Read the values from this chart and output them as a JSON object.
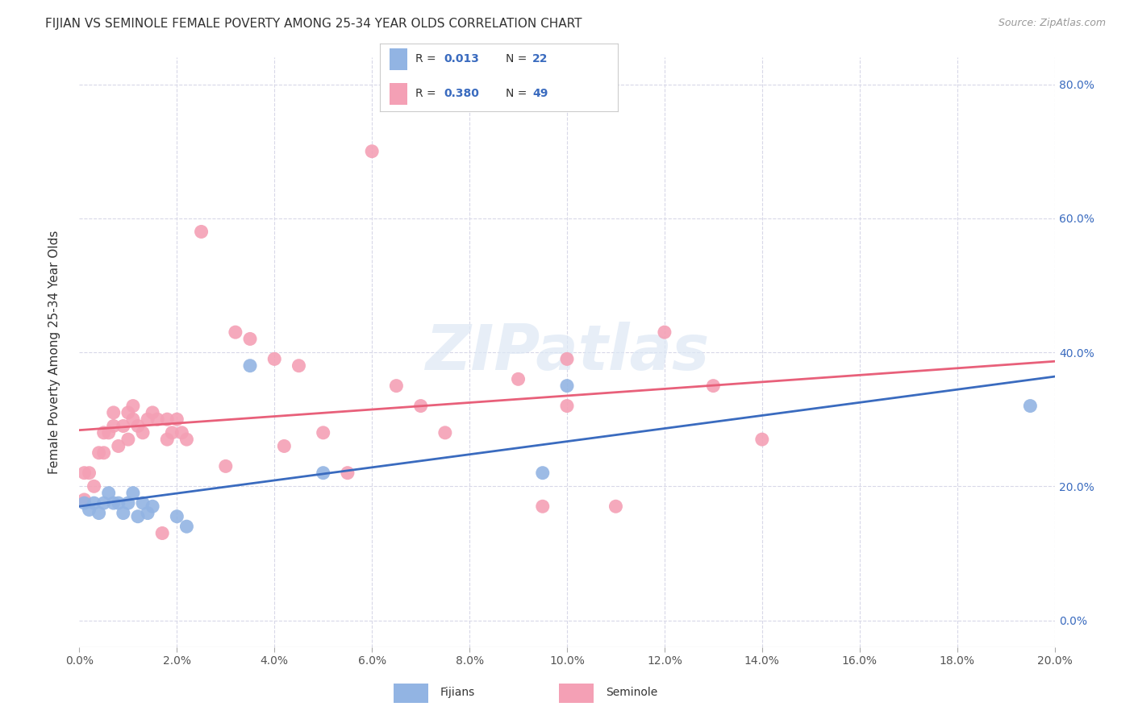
{
  "title": "FIJIAN VS SEMINOLE FEMALE POVERTY AMONG 25-34 YEAR OLDS CORRELATION CHART",
  "source": "Source: ZipAtlas.com",
  "ylabel": "Female Poverty Among 25-34 Year Olds",
  "xlim": [
    0.0,
    0.2
  ],
  "ylim": [
    -0.04,
    0.84
  ],
  "x_ticks": [
    0.0,
    0.02,
    0.04,
    0.06,
    0.08,
    0.1,
    0.12,
    0.14,
    0.16,
    0.18,
    0.2
  ],
  "y_ticks": [
    0.0,
    0.2,
    0.4,
    0.6,
    0.8
  ],
  "fijian_color": "#92b4e3",
  "seminole_color": "#f4a0b5",
  "fijian_line_color": "#3a6bbf",
  "seminole_line_color": "#e8607a",
  "watermark": "ZIPatlas",
  "background_color": "#ffffff",
  "grid_color": "#d8d8e8",
  "fijian_x": [
    0.001,
    0.002,
    0.003,
    0.004,
    0.005,
    0.006,
    0.007,
    0.008,
    0.009,
    0.01,
    0.011,
    0.012,
    0.013,
    0.014,
    0.015,
    0.02,
    0.022,
    0.035,
    0.05,
    0.095,
    0.1,
    0.195
  ],
  "fijian_y": [
    0.175,
    0.165,
    0.175,
    0.16,
    0.175,
    0.19,
    0.175,
    0.175,
    0.16,
    0.175,
    0.19,
    0.155,
    0.175,
    0.16,
    0.17,
    0.155,
    0.14,
    0.38,
    0.22,
    0.22,
    0.35,
    0.32
  ],
  "seminole_x": [
    0.001,
    0.001,
    0.002,
    0.003,
    0.004,
    0.005,
    0.005,
    0.006,
    0.007,
    0.007,
    0.008,
    0.009,
    0.01,
    0.01,
    0.011,
    0.011,
    0.012,
    0.013,
    0.014,
    0.015,
    0.016,
    0.017,
    0.018,
    0.018,
    0.019,
    0.02,
    0.021,
    0.022,
    0.025,
    0.03,
    0.032,
    0.035,
    0.04,
    0.042,
    0.045,
    0.05,
    0.055,
    0.06,
    0.065,
    0.07,
    0.075,
    0.09,
    0.095,
    0.1,
    0.1,
    0.11,
    0.12,
    0.13,
    0.14
  ],
  "seminole_y": [
    0.22,
    0.18,
    0.22,
    0.2,
    0.25,
    0.25,
    0.28,
    0.28,
    0.29,
    0.31,
    0.26,
    0.29,
    0.27,
    0.31,
    0.3,
    0.32,
    0.29,
    0.28,
    0.3,
    0.31,
    0.3,
    0.13,
    0.27,
    0.3,
    0.28,
    0.3,
    0.28,
    0.27,
    0.58,
    0.23,
    0.43,
    0.42,
    0.39,
    0.26,
    0.38,
    0.28,
    0.22,
    0.7,
    0.35,
    0.32,
    0.28,
    0.36,
    0.17,
    0.32,
    0.39,
    0.17,
    0.43,
    0.35,
    0.27
  ]
}
